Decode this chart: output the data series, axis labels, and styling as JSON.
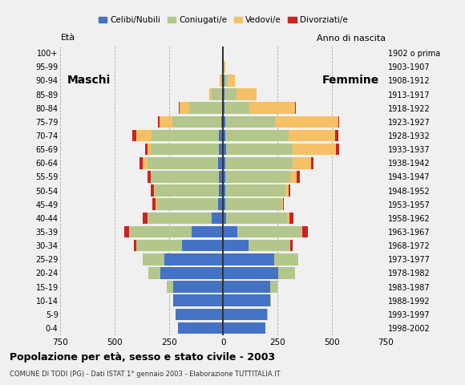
{
  "age_groups": [
    "0-4",
    "5-9",
    "10-14",
    "15-19",
    "20-24",
    "25-29",
    "30-34",
    "35-39",
    "40-44",
    "45-49",
    "50-54",
    "55-59",
    "60-64",
    "65-69",
    "70-74",
    "75-79",
    "80-84",
    "85-89",
    "90-94",
    "95-99",
    "100+"
  ],
  "birth_years": [
    "1998-2002",
    "1993-1997",
    "1988-1992",
    "1983-1987",
    "1978-1982",
    "1973-1977",
    "1968-1972",
    "1963-1967",
    "1958-1962",
    "1953-1957",
    "1948-1952",
    "1943-1947",
    "1938-1942",
    "1933-1937",
    "1928-1932",
    "1923-1927",
    "1918-1922",
    "1913-1917",
    "1908-1912",
    "1903-1907",
    "1902 o prima"
  ],
  "males": {
    "celibi": [
      210,
      220,
      230,
      230,
      290,
      270,
      190,
      145,
      55,
      25,
      20,
      20,
      25,
      20,
      20,
      10,
      5,
      0,
      0,
      0,
      0
    ],
    "coniugati": [
      0,
      0,
      0,
      30,
      55,
      100,
      210,
      285,
      290,
      280,
      295,
      310,
      325,
      315,
      310,
      225,
      150,
      55,
      10,
      0,
      0
    ],
    "vedovi": [
      0,
      0,
      0,
      0,
      0,
      0,
      0,
      5,
      5,
      5,
      5,
      5,
      20,
      15,
      70,
      60,
      45,
      10,
      5,
      0,
      0
    ],
    "divorziati": [
      0,
      0,
      0,
      0,
      0,
      0,
      10,
      20,
      20,
      15,
      15,
      15,
      15,
      10,
      20,
      5,
      5,
      0,
      0,
      0,
      0
    ]
  },
  "females": {
    "nubili": [
      195,
      200,
      215,
      215,
      255,
      235,
      115,
      65,
      15,
      10,
      10,
      10,
      10,
      15,
      10,
      10,
      5,
      5,
      5,
      0,
      0
    ],
    "coniugate": [
      0,
      5,
      5,
      35,
      75,
      110,
      195,
      295,
      280,
      260,
      275,
      300,
      310,
      305,
      290,
      230,
      115,
      55,
      15,
      5,
      0
    ],
    "vedove": [
      0,
      0,
      0,
      0,
      0,
      0,
      0,
      5,
      10,
      5,
      15,
      30,
      85,
      200,
      215,
      290,
      210,
      95,
      35,
      5,
      0
    ],
    "divorziate": [
      0,
      0,
      0,
      0,
      0,
      0,
      10,
      25,
      20,
      5,
      10,
      15,
      10,
      15,
      15,
      5,
      5,
      0,
      0,
      0,
      0
    ]
  },
  "colors": {
    "celibi": "#4472c4",
    "coniugati": "#b3c78c",
    "vedovi": "#f5c066",
    "divorziati": "#cc2222"
  },
  "title": "Popolazione per età, sesso e stato civile - 2003",
  "subtitle": "COMUNE DI TODI (PG) - Dati ISTAT 1° gennaio 2003 - Elaborazione TUTTITALIA.IT",
  "label_maschi": "Maschi",
  "label_femmine": "Femmine",
  "ylabel_left": "Età",
  "ylabel_right": "Anno di nascita",
  "xlim": 750,
  "background_color": "#f0f0f0",
  "bar_height": 0.85
}
